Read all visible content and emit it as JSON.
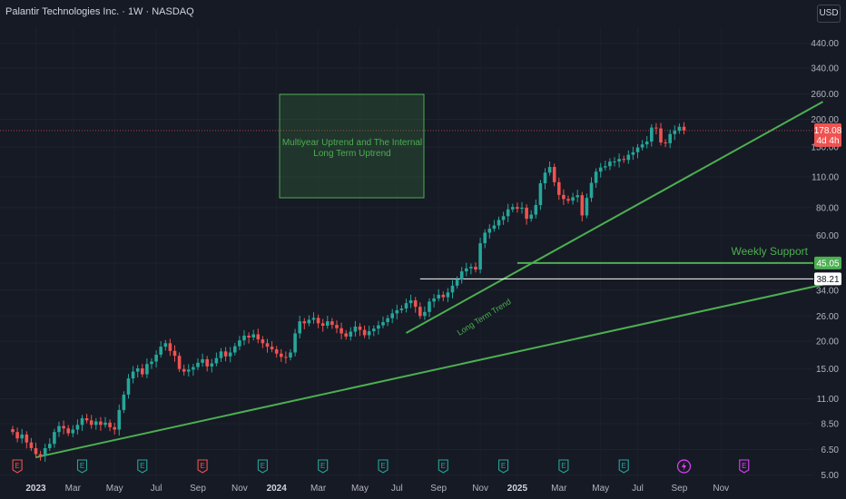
{
  "header": {
    "symbol": "Palantir Technologies Inc.",
    "sep": " · ",
    "interval": "1W",
    "exchange": "NASDAQ"
  },
  "currency": "USD",
  "colors": {
    "background": "#161a25",
    "up": "#26a69a",
    "down": "#ef5350",
    "trendline": "#4caf50",
    "support": "#4caf50",
    "white_line": "#ffffff",
    "price_line": "#ef5350"
  },
  "chart_data": {
    "type": "candlestick",
    "y_scale": "log",
    "ylim": [
      4.7,
      520
    ],
    "y_ticks": [
      5.0,
      6.5,
      8.5,
      11.0,
      15.0,
      20.0,
      26.0,
      34.0,
      45.0,
      60.0,
      80.0,
      110.0,
      150.0,
      200.0,
      260.0,
      340.0,
      440.0
    ],
    "y_tick_labels": [
      "5.00",
      "6.50",
      "8.50",
      "11.00",
      "15.00",
      "20.00",
      "26.00",
      "34.00",
      "45.00",
      "60.00",
      "80.00",
      "110.00",
      "150.00",
      "200.00",
      "260.00",
      "340.00",
      "440.00"
    ],
    "x_labels": [
      {
        "text": "2023",
        "bold": true,
        "week": 5
      },
      {
        "text": "Mar",
        "bold": false,
        "week": 13
      },
      {
        "text": "May",
        "bold": false,
        "week": 22
      },
      {
        "text": "Jul",
        "bold": false,
        "week": 31
      },
      {
        "text": "Sep",
        "bold": false,
        "week": 40
      },
      {
        "text": "Nov",
        "bold": false,
        "week": 49
      },
      {
        "text": "2024",
        "bold": true,
        "week": 57
      },
      {
        "text": "Mar",
        "bold": false,
        "week": 66
      },
      {
        "text": "May",
        "bold": false,
        "week": 75
      },
      {
        "text": "Jul",
        "bold": false,
        "week": 83
      },
      {
        "text": "Sep",
        "bold": false,
        "week": 92
      },
      {
        "text": "Nov",
        "bold": false,
        "week": 101
      },
      {
        "text": "2025",
        "bold": true,
        "week": 109
      },
      {
        "text": "Mar",
        "bold": false,
        "week": 118
      },
      {
        "text": "May",
        "bold": false,
        "week": 127
      },
      {
        "text": "Jul",
        "bold": false,
        "week": 135
      },
      {
        "text": "Sep",
        "bold": false,
        "week": 144
      },
      {
        "text": "Nov",
        "bold": false,
        "week": 153
      }
    ],
    "weekly_close": [
      7.8,
      7.3,
      7.6,
      7.0,
      6.6,
      6.2,
      6.1,
      6.6,
      6.9,
      7.8,
      8.3,
      8.1,
      7.7,
      8.0,
      8.4,
      9.0,
      8.8,
      8.4,
      8.7,
      8.4,
      8.6,
      8.2,
      8.0,
      9.8,
      11.5,
      13.6,
      14.6,
      15.1,
      14.2,
      15.8,
      16.2,
      17.4,
      18.9,
      19.6,
      18.1,
      17.2,
      15.0,
      14.6,
      14.9,
      15.3,
      16.0,
      16.6,
      15.4,
      15.9,
      16.8,
      18.0,
      17.1,
      17.8,
      19.0,
      20.2,
      21.2,
      20.8,
      21.5,
      20.4,
      19.6,
      18.9,
      18.4,
      17.6,
      17.0,
      16.9,
      17.8,
      21.7,
      24.6,
      24.1,
      25.0,
      25.5,
      24.1,
      23.5,
      24.6,
      23.7,
      22.9,
      21.7,
      21.0,
      22.1,
      23.3,
      22.5,
      21.3,
      22.2,
      22.8,
      23.6,
      24.4,
      25.4,
      26.7,
      27.6,
      28.1,
      29.7,
      30.6,
      28.6,
      26.0,
      27.1,
      30.2,
      31.2,
      32.4,
      31.6,
      33.2,
      35.6,
      37.9,
      41.3,
      42.6,
      43.3,
      42.1,
      55.3,
      61.7,
      64.3,
      66.5,
      70.4,
      73.2,
      78.6,
      80.5,
      79.1,
      80.0,
      71.3,
      74.4,
      82.2,
      103.0,
      115.0,
      122.0,
      104.2,
      91.3,
      87.5,
      86.0,
      89.1,
      91.0,
      73.8,
      88.5,
      103.5,
      116.2,
      121.4,
      123.0,
      129.0,
      129.1,
      132.6,
      131.2,
      138.4,
      142.1,
      149.3,
      154.2,
      158.8,
      183.6,
      182.0,
      157.3,
      156.1,
      171.7,
      177.6,
      185.2,
      178.1
    ],
    "series": [
      {
        "name": "Palantir Technologies Inc.",
        "values": "weekly_close"
      }
    ],
    "last_price": "178.08",
    "countdown": "4d 4h",
    "levels": [
      {
        "label": "45.05",
        "value": 45.05,
        "color": "#4caf50",
        "note": "Weekly Support"
      },
      {
        "label": "38.21",
        "value": 38.21,
        "color": "#ffffff"
      }
    ],
    "trendlines": [
      {
        "from": {
          "week": 5,
          "value": 6.0
        },
        "to": {
          "week": 175,
          "value": 36.0
        }
      },
      {
        "from": {
          "week": 85,
          "value": 21.8
        },
        "to": {
          "week": 175,
          "value": 240
        }
      }
    ],
    "trend_label": "Long Term Trend",
    "annotation": {
      "line1": "Multiyear Uptrend and The Internal",
      "line2": "Long Term Uptrend"
    },
    "events": [
      {
        "week": 1,
        "letter": "E",
        "kind": "earnings-past-loss"
      },
      {
        "week": 15,
        "letter": "E",
        "kind": "earnings"
      },
      {
        "week": 28,
        "letter": "E",
        "kind": "earnings"
      },
      {
        "week": 41,
        "letter": "E",
        "kind": "earnings-past-loss"
      },
      {
        "week": 54,
        "letter": "E",
        "kind": "earnings"
      },
      {
        "week": 67,
        "letter": "E",
        "kind": "earnings"
      },
      {
        "week": 80,
        "letter": "E",
        "kind": "earnings"
      },
      {
        "week": 93,
        "letter": "E",
        "kind": "earnings"
      },
      {
        "week": 106,
        "letter": "E",
        "kind": "earnings"
      },
      {
        "week": 119,
        "letter": "E",
        "kind": "earnings"
      },
      {
        "week": 132,
        "letter": "E",
        "kind": "earnings"
      },
      {
        "week": 145,
        "letter": "",
        "kind": "dividend"
      },
      {
        "week": 158,
        "letter": "E",
        "kind": "earnings-upcoming"
      }
    ]
  }
}
